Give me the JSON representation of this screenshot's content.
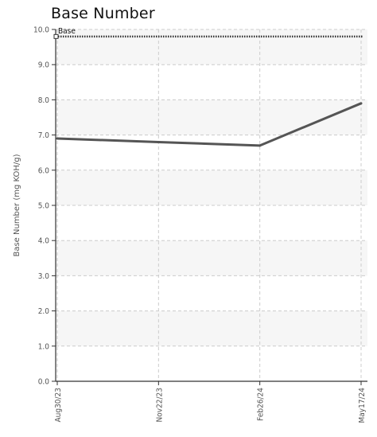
{
  "chart_data": {
    "type": "line",
    "title": "Base Number",
    "xlabel": "",
    "ylabel": "Base Number (mg KOH/g)",
    "ylim": [
      0,
      10
    ],
    "yticks": [
      "0.0",
      "1.0",
      "2.0",
      "3.0",
      "4.0",
      "5.0",
      "6.0",
      "7.0",
      "8.0",
      "9.0",
      "10.0"
    ],
    "categories": [
      "Aug30/23",
      "Nov22/23",
      "Feb26/24",
      "May17/24"
    ],
    "series": [
      {
        "values": [
          6.9,
          6.8,
          6.7,
          7.9
        ],
        "color": "#555555"
      }
    ],
    "reference_lines": [
      {
        "name": "Base",
        "value": 9.8,
        "color": "#333333",
        "style": "dotted"
      }
    ],
    "grid": true,
    "band_colors": [
      "#f6f6f6",
      "#ffffff"
    ]
  }
}
